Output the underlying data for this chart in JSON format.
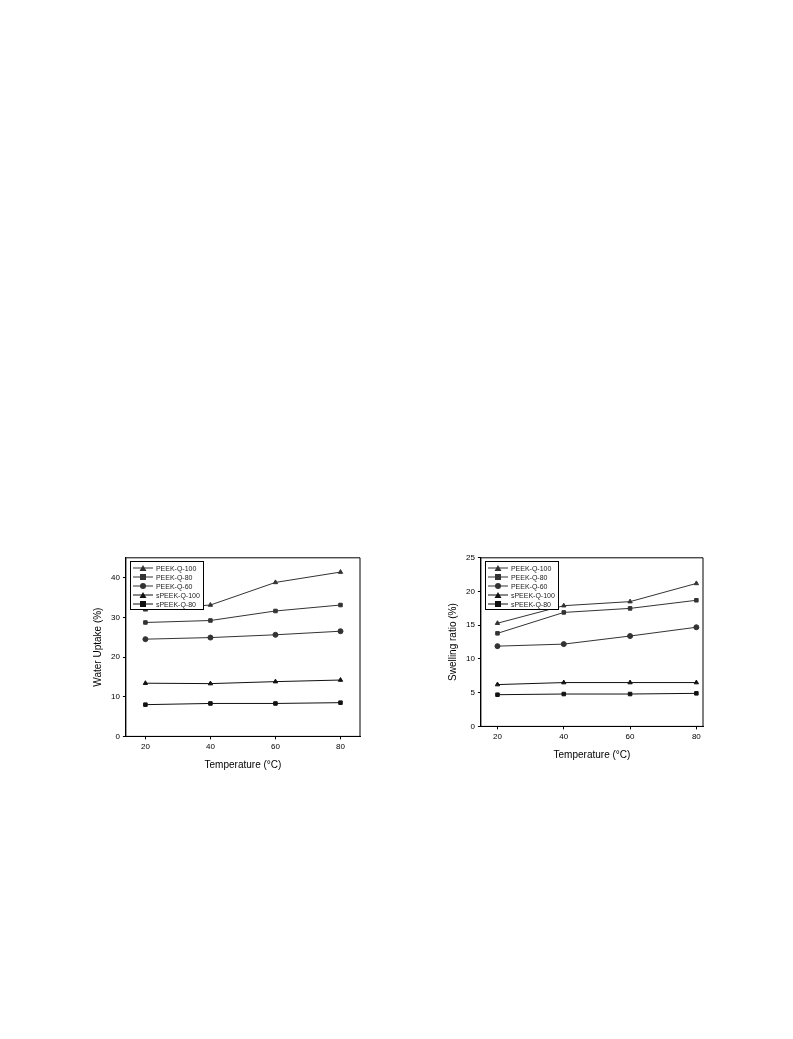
{
  "chart_data": [
    {
      "type": "line",
      "xlabel": "Temperature (°C)",
      "ylabel": "Water Uptake (%)",
      "x": [
        20,
        40,
        60,
        80
      ],
      "xlim": [
        14,
        86
      ],
      "xticks": [
        20,
        40,
        60,
        80
      ],
      "ylim": [
        0,
        45
      ],
      "yticks": [
        0,
        10,
        20,
        30,
        40
      ],
      "grid": false,
      "legend": "top left",
      "line_style": "solid",
      "series": [
        {
          "name": "PEEK-Q-100",
          "color": "#333333",
          "marker": "triangle",
          "values": [
            31.9,
            33.1,
            38.8,
            41.4
          ]
        },
        {
          "name": "PEEK-Q-80",
          "color": "#333333",
          "marker": "square",
          "values": [
            28.7,
            29.2,
            31.6,
            33.1
          ]
        },
        {
          "name": "PEEK-Q-60",
          "color": "#333333",
          "marker": "circle",
          "values": [
            24.5,
            24.9,
            25.6,
            26.5
          ]
        },
        {
          "name": "sPEEK-Q-100",
          "color": "#111111",
          "marker": "triangle",
          "values": [
            13.4,
            13.3,
            13.8,
            14.2
          ]
        },
        {
          "name": "sPEEK-Q-80",
          "color": "#111111",
          "marker": "square",
          "values": [
            8.0,
            8.3,
            8.3,
            8.5
          ]
        }
      ]
    },
    {
      "type": "line",
      "xlabel": "Temperature (°C)",
      "ylabel": "Swelling ratio (%)",
      "x": [
        20,
        40,
        60,
        80
      ],
      "xlim": [
        15,
        82
      ],
      "xticks": [
        20,
        40,
        60,
        80
      ],
      "ylim": [
        0,
        25
      ],
      "yticks": [
        0,
        5,
        10,
        15,
        20,
        25
      ],
      "grid": false,
      "legend": "top left",
      "line_style": "solid",
      "series": [
        {
          "name": "PEEK-Q-100",
          "color": "#333333",
          "marker": "triangle",
          "values": [
            15.3,
            17.9,
            18.5,
            21.2
          ]
        },
        {
          "name": "PEEK-Q-80",
          "color": "#333333",
          "marker": "square",
          "values": [
            13.8,
            16.9,
            17.5,
            18.7
          ]
        },
        {
          "name": "PEEK-Q-60",
          "color": "#333333",
          "marker": "circle",
          "values": [
            11.9,
            12.2,
            13.4,
            14.7
          ]
        },
        {
          "name": "sPEEK-Q-100",
          "color": "#111111",
          "marker": "triangle",
          "values": [
            6.2,
            6.5,
            6.5,
            6.5
          ]
        },
        {
          "name": "sPEEK-Q-80",
          "color": "#111111",
          "marker": "square",
          "values": [
            4.7,
            4.8,
            4.8,
            4.9
          ]
        }
      ]
    }
  ]
}
